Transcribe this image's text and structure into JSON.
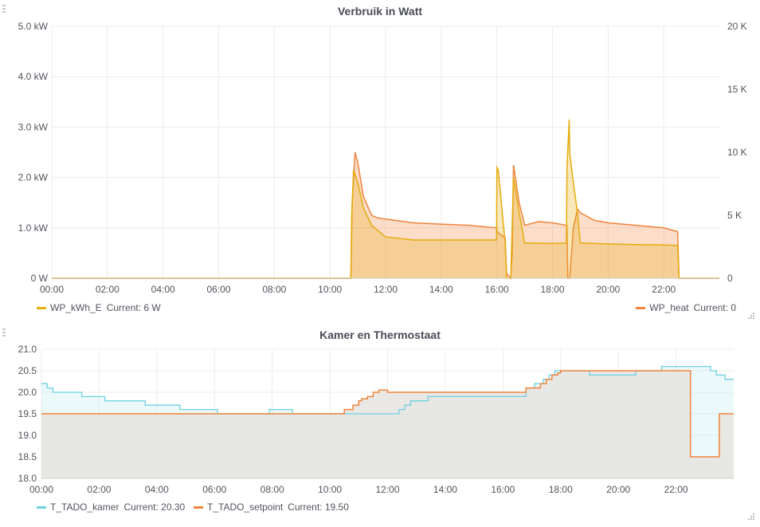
{
  "panels": [
    {
      "title": "Verbruik in Watt",
      "legend": [
        {
          "name": "WP_kWh_E",
          "current_label": "Current:",
          "current_value": "6 W"
        },
        {
          "name": "WP_heat",
          "current_label": "Current:",
          "current_value": "0"
        }
      ]
    },
    {
      "title": "Kamer en Thermostaat",
      "legend": [
        {
          "name": "T_TADO_kamer",
          "current_label": "Current:",
          "current_value": "20.30"
        },
        {
          "name": "T_TADO_setpoint",
          "current_label": "Current:",
          "current_value": "19.50"
        }
      ]
    }
  ],
  "colors": {
    "WP_kWh_E": "#e5ac0e",
    "WP_heat": "#ef843c",
    "T_TADO_kamer": "#6ed0e0",
    "T_TADO_setpoint": "#ef843c",
    "grid": "#ececec"
  },
  "chart_data": [
    {
      "type": "area",
      "title": "Verbruik in Watt",
      "x_unit": "hours",
      "xlim": [
        0,
        24
      ],
      "x_ticks": [
        "00:00",
        "02:00",
        "04:00",
        "06:00",
        "08:00",
        "10:00",
        "12:00",
        "14:00",
        "16:00",
        "18:00",
        "20:00",
        "22:00"
      ],
      "y_left_ticks": [
        "0 W",
        "1.0 kW",
        "2.0 kW",
        "3.0 kW",
        "4.0 kW",
        "5.0 kW"
      ],
      "y_left_lim": [
        0,
        5000
      ],
      "y_right_ticks": [
        "0",
        "5 K",
        "10 K",
        "15 K",
        "20 K"
      ],
      "y_right_lim": [
        0,
        20000
      ],
      "grid": true,
      "legend_position": "bottom",
      "series": [
        {
          "name": "WP_kWh_E",
          "axis": "left",
          "x": [
            0,
            10.75,
            10.78,
            10.85,
            11.0,
            11.2,
            11.5,
            12.0,
            13.0,
            14.0,
            15.0,
            15.99,
            16.0,
            16.05,
            16.3,
            16.35,
            16.5,
            16.6,
            16.8,
            17.0,
            18.0,
            18.5,
            18.52,
            18.6,
            18.62,
            18.75,
            18.9,
            19.0,
            19.5,
            20.0,
            21.0,
            22.0,
            22.5,
            22.55,
            24
          ],
          "y": [
            0,
            0,
            1200,
            2150,
            1900,
            1400,
            1050,
            820,
            760,
            760,
            760,
            760,
            2200,
            2150,
            700,
            0,
            0,
            2000,
            1300,
            700,
            690,
            700,
            2200,
            3150,
            2500,
            1900,
            1300,
            700,
            690,
            680,
            670,
            660,
            650,
            0,
            0
          ]
        },
        {
          "name": "WP_heat",
          "axis": "right",
          "x": [
            0,
            10.75,
            10.8,
            10.9,
            11.0,
            11.2,
            11.5,
            11.7,
            12.0,
            13.0,
            14.0,
            15.0,
            15.99,
            16.0,
            16.05,
            16.3,
            16.35,
            16.5,
            16.55,
            16.6,
            16.8,
            17.0,
            17.5,
            18.0,
            18.52,
            18.55,
            18.62,
            18.75,
            18.9,
            19.0,
            19.5,
            20.0,
            21.0,
            22.0,
            22.5,
            22.55,
            24
          ],
          "y": [
            0,
            0,
            6000,
            10000,
            9200,
            6500,
            5000,
            4800,
            4700,
            4400,
            4300,
            4200,
            4000,
            3800,
            3600,
            3200,
            400,
            0,
            2000,
            9000,
            6000,
            4200,
            4500,
            4400,
            4200,
            0,
            0,
            4000,
            5500,
            5200,
            4600,
            4400,
            4200,
            4000,
            3700,
            0,
            0
          ]
        }
      ]
    },
    {
      "type": "line",
      "title": "Kamer en Thermostaat",
      "x_unit": "hours",
      "xlim": [
        0,
        24
      ],
      "x_ticks": [
        "00:00",
        "02:00",
        "04:00",
        "06:00",
        "08:00",
        "10:00",
        "12:00",
        "14:00",
        "16:00",
        "18:00",
        "20:00",
        "22:00"
      ],
      "y_ticks": [
        "18.0",
        "18.5",
        "19.0",
        "19.5",
        "20.0",
        "20.5",
        "21.0"
      ],
      "ylim": [
        18.0,
        21.0
      ],
      "grid": true,
      "legend_position": "bottom",
      "series": [
        {
          "name": "T_TADO_kamer",
          "x": [
            0,
            0.2,
            0.4,
            0.8,
            1.4,
            2.2,
            3.6,
            4.8,
            6.1,
            7.9,
            8.7,
            12.4,
            12.6,
            12.8,
            13.0,
            13.4,
            16.8,
            17.1,
            17.4,
            17.6,
            17.8,
            18.2,
            19.0,
            20.5,
            20.6,
            21.2,
            21.5,
            22.1,
            22.9,
            23.2,
            23.4,
            23.7,
            24
          ],
          "y": [
            20.2,
            20.1,
            20.0,
            20.0,
            19.9,
            19.8,
            19.7,
            19.6,
            19.5,
            19.6,
            19.5,
            19.6,
            19.7,
            19.8,
            19.8,
            19.9,
            20.1,
            20.2,
            20.3,
            20.4,
            20.5,
            20.5,
            20.4,
            20.4,
            20.5,
            20.5,
            20.6,
            20.6,
            20.6,
            20.5,
            20.4,
            20.3,
            20.3
          ]
        },
        {
          "name": "T_TADO_setpoint",
          "x": [
            0,
            10.5,
            10.8,
            11.0,
            11.1,
            11.3,
            11.5,
            11.7,
            12.0,
            12.7,
            14.5,
            16.8,
            17.3,
            17.5,
            17.7,
            17.9,
            18.0,
            22.4,
            22.5,
            23.5,
            24
          ],
          "y": [
            19.5,
            19.6,
            19.7,
            19.8,
            19.85,
            19.9,
            20.0,
            20.05,
            20.0,
            20.0,
            20.0,
            20.1,
            20.2,
            20.3,
            20.4,
            20.45,
            20.5,
            20.5,
            18.5,
            19.5,
            19.5
          ]
        }
      ]
    }
  ]
}
